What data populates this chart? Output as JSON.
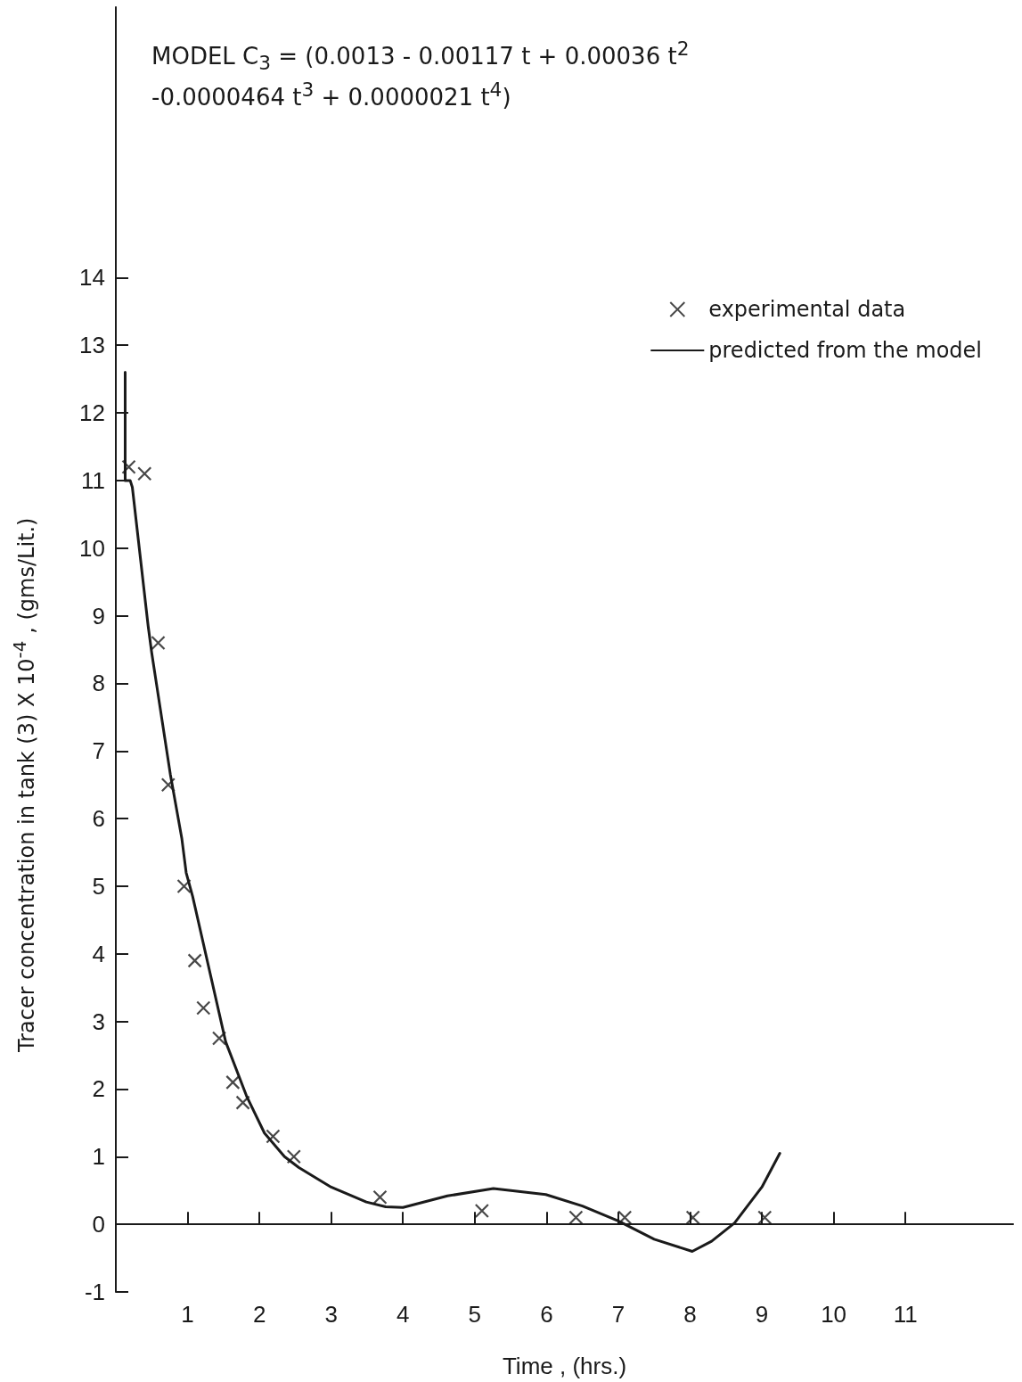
{
  "chart_data": {
    "type": "scatter",
    "annotations": [
      "MODEL C$_{3}$ = (0.0013 - 0.00117 t + 0.00036 t$^{2}$ -0.0000464 t$^{3}$ + 0.0000021 t$^{4}$)"
    ],
    "xlabel": "Time , (hrs.)",
    "ylabel": "Tracer concentration in tank (3) X 10$^{-4}$ , (gms/Lit.)",
    "series": [
      {
        "name": "experimental data",
        "marker": "cross",
        "color": "#1a1a1a",
        "x": [
          0.18,
          0.4,
          0.59,
          0.73,
          0.95,
          1.1,
          1.22,
          1.44,
          1.63,
          1.77,
          2.19,
          2.48,
          3.68,
          5.1,
          6.41,
          7.09,
          8.04,
          9.04
        ],
        "values": [
          11.2,
          11.1,
          8.6,
          6.5,
          5.0,
          3.9,
          3.2,
          2.75,
          2.1,
          1.8,
          1.3,
          1.0,
          0.4,
          0.2,
          0.1,
          0.1,
          0.1,
          0.1
        ]
      },
      {
        "name": "predicted from the model",
        "type": "line",
        "marker": "none",
        "line_style": "solid",
        "color": "#1a1a1a",
        "x": [
          0.13,
          0.13,
          0.2,
          0.23,
          0.45,
          0.5,
          0.76,
          0.92,
          0.98,
          1.07,
          1.53,
          1.82,
          2.07,
          2.35,
          2.55,
          3.0,
          3.49,
          3.76,
          4.0,
          4.62,
          5.26,
          5.99,
          6.5,
          7.0,
          7.5,
          8.03,
          8.3,
          8.62,
          9.0,
          9.25
        ],
        "values": [
          12.6,
          11.0,
          11.0,
          10.9,
          8.85,
          8.45,
          6.65,
          5.7,
          5.2,
          4.85,
          2.7,
          1.9,
          1.35,
          1.0,
          0.84,
          0.55,
          0.33,
          0.26,
          0.25,
          0.42,
          0.53,
          0.44,
          0.27,
          0.05,
          -0.22,
          -0.4,
          -0.25,
          0.02,
          0.55,
          1.05
        ]
      }
    ],
    "xlim": [
      0,
      12.5
    ],
    "xticks": [
      1,
      2,
      3,
      4,
      5,
      6,
      7,
      8,
      9,
      10,
      11
    ],
    "ylim": [
      -1,
      18
    ],
    "yticks": [
      -1,
      0,
      1,
      2,
      3,
      4,
      5,
      6,
      7,
      8,
      9,
      10,
      11,
      12,
      13,
      14
    ],
    "legend": "top right"
  }
}
